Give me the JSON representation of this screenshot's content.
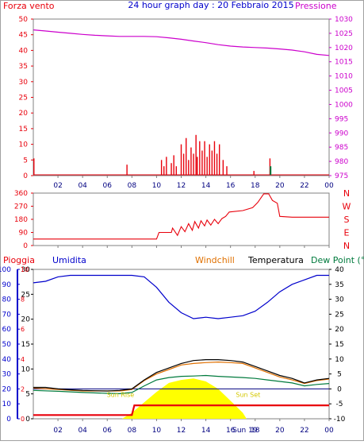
{
  "colors": {
    "wind": "#e8000b",
    "pressure": "#cc00cc",
    "rain": "#e8000b",
    "humidity": "#0000cc",
    "windchill": "#e07000",
    "temperature": "#000000",
    "dewpoint": "#007a3d",
    "sun": "#ffff00",
    "sunText": "#d4c800",
    "axis": "#000000",
    "grid": "#808080"
  },
  "chart_data": [
    {
      "type": "bar",
      "panel": "wind-pressure",
      "title": "24 hour graph day : 20 Febbraio 2015",
      "left_label": "Forza vento",
      "right_label": "Pressione",
      "x_ticks": [
        "02",
        "04",
        "06",
        "08",
        "10",
        "12",
        "14",
        "16",
        "18",
        "20",
        "22",
        "00"
      ],
      "x_range": [
        0,
        24
      ],
      "y_left_range": [
        0,
        50
      ],
      "y_left_ticks": [
        "0",
        "5",
        "10",
        "15",
        "20",
        "25",
        "30",
        "35",
        "40",
        "45",
        "50"
      ],
      "y_right_range": [
        975,
        1030
      ],
      "y_right_ticks": [
        "975",
        "980",
        "985",
        "990",
        "995",
        "1000",
        "1005",
        "1010",
        "1015",
        "1020",
        "1025",
        "1030"
      ],
      "wind_bars": [
        {
          "x": 0.05,
          "v": 5.5
        },
        {
          "x": 7.6,
          "v": 3.5
        },
        {
          "x": 10.4,
          "v": 5
        },
        {
          "x": 10.6,
          "v": 3
        },
        {
          "x": 10.8,
          "v": 6
        },
        {
          "x": 11.2,
          "v": 4
        },
        {
          "x": 11.4,
          "v": 6.5
        },
        {
          "x": 11.6,
          "v": 3
        },
        {
          "x": 12.0,
          "v": 10
        },
        {
          "x": 12.2,
          "v": 7
        },
        {
          "x": 12.4,
          "v": 12
        },
        {
          "x": 12.6,
          "v": 5
        },
        {
          "x": 12.8,
          "v": 9
        },
        {
          "x": 13.0,
          "v": 7
        },
        {
          "x": 13.2,
          "v": 13
        },
        {
          "x": 13.3,
          "v": 6
        },
        {
          "x": 13.5,
          "v": 11
        },
        {
          "x": 13.7,
          "v": 8
        },
        {
          "x": 13.9,
          "v": 11
        },
        {
          "x": 14.1,
          "v": 6
        },
        {
          "x": 14.3,
          "v": 10
        },
        {
          "x": 14.5,
          "v": 8
        },
        {
          "x": 14.7,
          "v": 11
        },
        {
          "x": 14.9,
          "v": 7
        },
        {
          "x": 15.1,
          "v": 10
        },
        {
          "x": 15.4,
          "v": 5
        },
        {
          "x": 15.7,
          "v": 3
        },
        {
          "x": 17.9,
          "v": 1.5
        },
        {
          "x": 19.2,
          "v": 5.5
        }
      ],
      "gust_marks": [
        {
          "x": 19.25,
          "v": 3
        }
      ],
      "pressure": [
        {
          "x": 0,
          "v": 1026.2
        },
        {
          "x": 1,
          "v": 1025.8
        },
        {
          "x": 2,
          "v": 1025.4
        },
        {
          "x": 3,
          "v": 1025.0
        },
        {
          "x": 4,
          "v": 1024.6
        },
        {
          "x": 5,
          "v": 1024.3
        },
        {
          "x": 6,
          "v": 1024.1
        },
        {
          "x": 7,
          "v": 1023.9
        },
        {
          "x": 8,
          "v": 1023.9
        },
        {
          "x": 9,
          "v": 1023.9
        },
        {
          "x": 10,
          "v": 1023.8
        },
        {
          "x": 11,
          "v": 1023.4
        },
        {
          "x": 12,
          "v": 1022.9
        },
        {
          "x": 13,
          "v": 1022.3
        },
        {
          "x": 14,
          "v": 1021.7
        },
        {
          "x": 15,
          "v": 1021.0
        },
        {
          "x": 16,
          "v": 1020.5
        },
        {
          "x": 17,
          "v": 1020.2
        },
        {
          "x": 18,
          "v": 1020.0
        },
        {
          "x": 19,
          "v": 1019.8
        },
        {
          "x": 20,
          "v": 1019.5
        },
        {
          "x": 21,
          "v": 1019.1
        },
        {
          "x": 22,
          "v": 1018.5
        },
        {
          "x": 23,
          "v": 1017.6
        },
        {
          "x": 24,
          "v": 1017.2
        }
      ]
    },
    {
      "type": "line",
      "panel": "wind-direction",
      "x_ticks": [
        "02",
        "04",
        "06",
        "08",
        "10",
        "12",
        "14",
        "16",
        "18",
        "20",
        "22",
        "00"
      ],
      "x_range": [
        0,
        24
      ],
      "y_range": [
        0,
        360
      ],
      "y_ticks": [
        "0",
        "90",
        "180",
        "270",
        "360"
      ],
      "right_labels": [
        "N",
        "W",
        "S",
        "E",
        "N"
      ],
      "values": [
        {
          "x": 0,
          "v": 45
        },
        {
          "x": 10.0,
          "v": 45
        },
        {
          "x": 10.2,
          "v": 90
        },
        {
          "x": 11.2,
          "v": 90
        },
        {
          "x": 11.3,
          "v": 120
        },
        {
          "x": 11.7,
          "v": 70
        },
        {
          "x": 12.0,
          "v": 130
        },
        {
          "x": 12.3,
          "v": 95
        },
        {
          "x": 12.6,
          "v": 150
        },
        {
          "x": 12.9,
          "v": 105
        },
        {
          "x": 13.1,
          "v": 165
        },
        {
          "x": 13.4,
          "v": 120
        },
        {
          "x": 13.6,
          "v": 170
        },
        {
          "x": 13.9,
          "v": 135
        },
        {
          "x": 14.1,
          "v": 175
        },
        {
          "x": 14.4,
          "v": 140
        },
        {
          "x": 14.7,
          "v": 180
        },
        {
          "x": 15.0,
          "v": 150
        },
        {
          "x": 15.3,
          "v": 185
        },
        {
          "x": 15.6,
          "v": 200
        },
        {
          "x": 15.9,
          "v": 230
        },
        {
          "x": 17.0,
          "v": 240
        },
        {
          "x": 17.8,
          "v": 260
        },
        {
          "x": 18.2,
          "v": 295
        },
        {
          "x": 18.7,
          "v": 355
        },
        {
          "x": 19.1,
          "v": 355
        },
        {
          "x": 19.4,
          "v": 310
        },
        {
          "x": 19.8,
          "v": 290
        },
        {
          "x": 20.0,
          "v": 200
        },
        {
          "x": 21.0,
          "v": 195
        },
        {
          "x": 24,
          "v": 195
        }
      ]
    },
    {
      "type": "line",
      "panel": "temperature-humidity",
      "labels": {
        "rain": "Pioggia",
        "humidity": "Umidita",
        "windchill": "Windchill",
        "temperature": "Temperatura",
        "dewpoint": "Dew Point (°C"
      },
      "x_ticks": [
        "02",
        "04",
        "06",
        "08",
        "10",
        "12",
        "14",
        "16",
        "18",
        "20",
        "22",
        "00"
      ],
      "x_range": [
        0,
        24
      ],
      "sunrise_label": "Sun Rise",
      "sunset_label": "Sun Set",
      "sunrise_x": 7.2,
      "sunset_x": 17.3,
      "sun_bottom_label": "Sun 19",
      "y_rain_range": [
        0,
        10
      ],
      "y_rain_ticks": [
        "0",
        "2",
        "4",
        "6",
        "8",
        "10"
      ],
      "y_humidity_range": [
        0,
        100
      ],
      "y_humidity_ticks": [
        "0",
        "10",
        "20",
        "30",
        "40",
        "50",
        "60",
        "70",
        "80",
        "90",
        "100"
      ],
      "y_mid_range": [
        0,
        30
      ],
      "y_mid_ticks": [
        "0",
        "5",
        "10",
        "15",
        "20",
        "25",
        "30"
      ],
      "y_temp_range": [
        -10,
        40
      ],
      "y_temp_ticks": [
        "-10",
        "-5",
        "0",
        "5",
        "10",
        "15",
        "20",
        "25",
        "30",
        "35",
        "40"
      ],
      "reference_line_temp": 0,
      "humidity": [
        {
          "x": 0,
          "v": 91
        },
        {
          "x": 1,
          "v": 92
        },
        {
          "x": 2,
          "v": 95
        },
        {
          "x": 3,
          "v": 96
        },
        {
          "x": 4,
          "v": 96
        },
        {
          "x": 5,
          "v": 96
        },
        {
          "x": 6,
          "v": 96
        },
        {
          "x": 7,
          "v": 96
        },
        {
          "x": 8,
          "v": 96
        },
        {
          "x": 9,
          "v": 95
        },
        {
          "x": 10,
          "v": 88
        },
        {
          "x": 11,
          "v": 78
        },
        {
          "x": 12,
          "v": 71
        },
        {
          "x": 13,
          "v": 67
        },
        {
          "x": 14,
          "v": 68
        },
        {
          "x": 15,
          "v": 67
        },
        {
          "x": 16,
          "v": 68
        },
        {
          "x": 17,
          "v": 69
        },
        {
          "x": 18,
          "v": 72
        },
        {
          "x": 19,
          "v": 78
        },
        {
          "x": 20,
          "v": 85
        },
        {
          "x": 21,
          "v": 90
        },
        {
          "x": 22,
          "v": 93
        },
        {
          "x": 23,
          "v": 96
        },
        {
          "x": 24,
          "v": 96
        }
      ],
      "temperature": [
        {
          "x": 0,
          "v": 0.5
        },
        {
          "x": 1,
          "v": 0.5
        },
        {
          "x": 2,
          "v": 0.0
        },
        {
          "x": 3,
          "v": -0.3
        },
        {
          "x": 4,
          "v": -0.5
        },
        {
          "x": 5,
          "v": -0.6
        },
        {
          "x": 6,
          "v": -0.7
        },
        {
          "x": 7,
          "v": -0.5
        },
        {
          "x": 8,
          "v": 0.0
        },
        {
          "x": 9,
          "v": 3.0
        },
        {
          "x": 10,
          "v": 5.5
        },
        {
          "x": 11,
          "v": 7.0
        },
        {
          "x": 12,
          "v": 8.5
        },
        {
          "x": 13,
          "v": 9.5
        },
        {
          "x": 14,
          "v": 9.8
        },
        {
          "x": 15,
          "v": 9.8
        },
        {
          "x": 16,
          "v": 9.5
        },
        {
          "x": 17,
          "v": 9.0
        },
        {
          "x": 18,
          "v": 7.5
        },
        {
          "x": 19,
          "v": 6.0
        },
        {
          "x": 20,
          "v": 4.5
        },
        {
          "x": 21,
          "v": 3.5
        },
        {
          "x": 22,
          "v": 2.0
        },
        {
          "x": 23,
          "v": 3.0
        },
        {
          "x": 24,
          "v": 3.5
        }
      ],
      "windchill": [
        {
          "x": 0,
          "v": 0.3
        },
        {
          "x": 4,
          "v": -0.7
        },
        {
          "x": 7,
          "v": -0.7
        },
        {
          "x": 8,
          "v": -0.2
        },
        {
          "x": 9,
          "v": 2.8
        },
        {
          "x": 10,
          "v": 5.0
        },
        {
          "x": 11,
          "v": 6.5
        },
        {
          "x": 12,
          "v": 8.0
        },
        {
          "x": 13,
          "v": 8.5
        },
        {
          "x": 14,
          "v": 8.8
        },
        {
          "x": 15,
          "v": 9.0
        },
        {
          "x": 16,
          "v": 8.8
        },
        {
          "x": 17,
          "v": 8.5
        },
        {
          "x": 18,
          "v": 7.0
        },
        {
          "x": 19,
          "v": 5.5
        },
        {
          "x": 20,
          "v": 4.0
        },
        {
          "x": 21,
          "v": 3.0
        },
        {
          "x": 22,
          "v": 1.8
        },
        {
          "x": 23,
          "v": 2.8
        },
        {
          "x": 24,
          "v": 3.3
        }
      ],
      "dewpoint": [
        {
          "x": 0,
          "v": -0.5
        },
        {
          "x": 2,
          "v": -0.8
        },
        {
          "x": 4,
          "v": -1.2
        },
        {
          "x": 6,
          "v": -1.5
        },
        {
          "x": 7,
          "v": -1.6
        },
        {
          "x": 8,
          "v": -1.2
        },
        {
          "x": 9,
          "v": 1.0
        },
        {
          "x": 10,
          "v": 3.0
        },
        {
          "x": 11,
          "v": 3.8
        },
        {
          "x": 12,
          "v": 4.2
        },
        {
          "x": 13,
          "v": 4.3
        },
        {
          "x": 14,
          "v": 4.5
        },
        {
          "x": 15,
          "v": 4.2
        },
        {
          "x": 16,
          "v": 4.0
        },
        {
          "x": 17,
          "v": 3.8
        },
        {
          "x": 18,
          "v": 3.5
        },
        {
          "x": 19,
          "v": 3.0
        },
        {
          "x": 20,
          "v": 2.5
        },
        {
          "x": 21,
          "v": 2.0
        },
        {
          "x": 22,
          "v": 1.0
        },
        {
          "x": 23,
          "v": 1.5
        },
        {
          "x": 24,
          "v": 1.8
        }
      ],
      "sun": [
        {
          "x": 7.2,
          "v": 0
        },
        {
          "x": 8.0,
          "v": 4
        },
        {
          "x": 9.0,
          "v": 11
        },
        {
          "x": 10.0,
          "v": 18
        },
        {
          "x": 11.0,
          "v": 24
        },
        {
          "x": 12.0,
          "v": 26
        },
        {
          "x": 13.0,
          "v": 27
        },
        {
          "x": 14.0,
          "v": 25
        },
        {
          "x": 15.0,
          "v": 20
        },
        {
          "x": 16.0,
          "v": 12
        },
        {
          "x": 17.0,
          "v": 4
        },
        {
          "x": 17.3,
          "v": 0
        }
      ],
      "rain": [
        {
          "x": 0,
          "v": 0.25
        },
        {
          "x": 8.0,
          "v": 0.25
        },
        {
          "x": 8.2,
          "v": 0.9
        },
        {
          "x": 24,
          "v": 0.9
        }
      ]
    }
  ]
}
